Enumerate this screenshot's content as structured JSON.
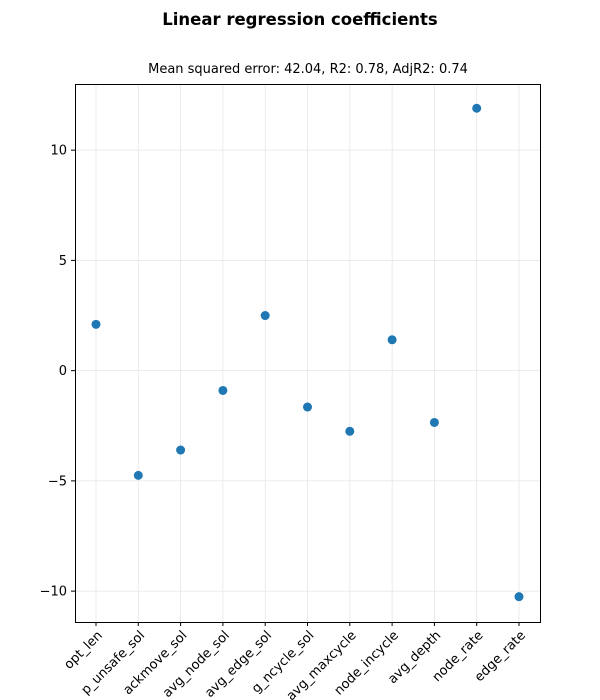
{
  "figure": {
    "title": "Linear regression coefficients",
    "subtitle": "Mean squared error: 42.04, R2: 0.78, AdjR2: 0.74"
  },
  "chart_data": {
    "type": "scatter",
    "title": "Mean squared error: 42.04, R2: 0.78, AdjR2: 0.74",
    "xlabel": "",
    "ylabel": "",
    "categories": [
      "opt_len",
      "p_unsafe_sol",
      "ackmove_sol",
      "avg_node_sol",
      "avg_edge_sol",
      "g_ncycle_sol",
      "avg_maxcycle",
      "node_incycle",
      "avg_depth",
      "node_rate",
      "edge_rate"
    ],
    "series": [
      {
        "values": [
          2.1,
          -4.75,
          -3.6,
          -0.9,
          2.5,
          -1.65,
          -2.75,
          1.4,
          -2.35,
          11.9,
          -10.25
        ]
      }
    ],
    "yticks": [
      -10,
      -5,
      0,
      5,
      10
    ],
    "ylim": [
      -11.4,
      13.0
    ],
    "grid": true,
    "marker_color": "#1f77b4"
  }
}
